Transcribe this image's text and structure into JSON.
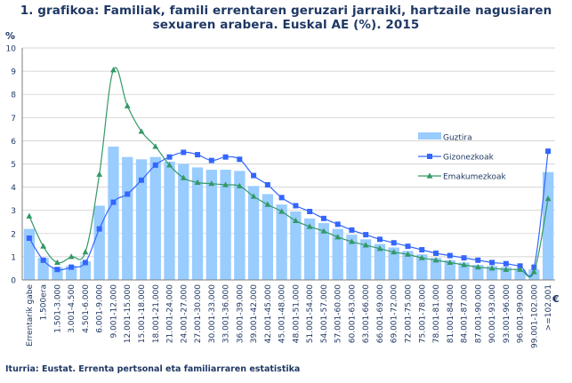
{
  "chart_data": {
    "type": "bar",
    "title_line1": "1. grafikoa: Familiak, famili errentaren geruzari jarraiki, hartzaile nagusiaren",
    "title_line2": "sexuaren arabera. Euskal AE (%). 2015",
    "ylabel": "%",
    "xunit": "€",
    "ylim": [
      0,
      10
    ],
    "yticks": [
      0,
      1,
      2,
      3,
      4,
      5,
      6,
      7,
      8,
      9,
      10
    ],
    "grid": true,
    "legend_position": "right",
    "categories": [
      "Errentarik gabe",
      "1.500era",
      "1.501-3.000",
      "3.001-4.500",
      "4.501-6.000",
      "6.001-9.000",
      "9.001-12.000",
      "12.001-15.000",
      "15.001-18.000",
      "18.001-21.000",
      "21.001-24.000",
      "24.001-27.000",
      "27.001-30.000",
      "30.001-33.000",
      "33.001-36.000",
      "36.001-39.000",
      "39.001-42.000",
      "42.001-45.000",
      "45.001-48.000",
      "48.001-51.000",
      "51.001-54.000",
      "54.001-57.000",
      "57.001-60.000",
      "60.001-63.000",
      "63.001-66.000",
      "66.001-69.000",
      "69.001-72.000",
      "72.001-75.000",
      "75.001-78.000",
      "78.001-81.000",
      "81.001-84.000",
      "84.001-87.000",
      "87.001-90.000",
      "90.001-93.000",
      "93.001-96.000",
      "96.001-99.000",
      "99.001-102.000",
      ">=102.001"
    ],
    "series": [
      {
        "name": "Guztira",
        "kind": "bar",
        "color": "#99ccff",
        "values": [
          2.2,
          0.95,
          0.55,
          0.6,
          0.8,
          3.2,
          5.75,
          5.3,
          5.2,
          5.3,
          5.1,
          5.0,
          4.85,
          4.75,
          4.75,
          4.7,
          4.05,
          3.7,
          3.25,
          2.95,
          2.65,
          2.45,
          2.2,
          1.95,
          1.75,
          1.55,
          1.4,
          1.25,
          1.1,
          0.95,
          0.85,
          0.75,
          0.65,
          0.6,
          0.55,
          0.45,
          0.45,
          4.65
        ]
      },
      {
        "name": "Gizonezkoak",
        "kind": "line",
        "marker": "square",
        "color": "#3366ff",
        "values": [
          1.8,
          0.85,
          0.45,
          0.55,
          0.75,
          2.2,
          3.35,
          3.7,
          4.3,
          4.95,
          5.3,
          5.5,
          5.4,
          5.15,
          5.3,
          5.2,
          4.5,
          4.1,
          3.55,
          3.2,
          2.95,
          2.65,
          2.4,
          2.15,
          1.95,
          1.75,
          1.6,
          1.45,
          1.3,
          1.15,
          1.05,
          0.95,
          0.85,
          0.75,
          0.7,
          0.6,
          0.55,
          5.55
        ]
      },
      {
        "name": "Emakumezkoak",
        "kind": "line",
        "marker": "triangle",
        "color": "#339966",
        "values": [
          2.75,
          1.45,
          0.75,
          1.0,
          1.2,
          4.55,
          9.05,
          7.5,
          6.4,
          5.75,
          4.95,
          4.4,
          4.2,
          4.15,
          4.1,
          4.05,
          3.6,
          3.25,
          2.95,
          2.55,
          2.3,
          2.1,
          1.85,
          1.65,
          1.5,
          1.35,
          1.2,
          1.1,
          0.95,
          0.85,
          0.75,
          0.65,
          0.55,
          0.5,
          0.45,
          0.45,
          0.35,
          3.5
        ]
      }
    ]
  },
  "source": "Iturria: Eustat. Errenta pertsonal eta familiarraren estatistika"
}
